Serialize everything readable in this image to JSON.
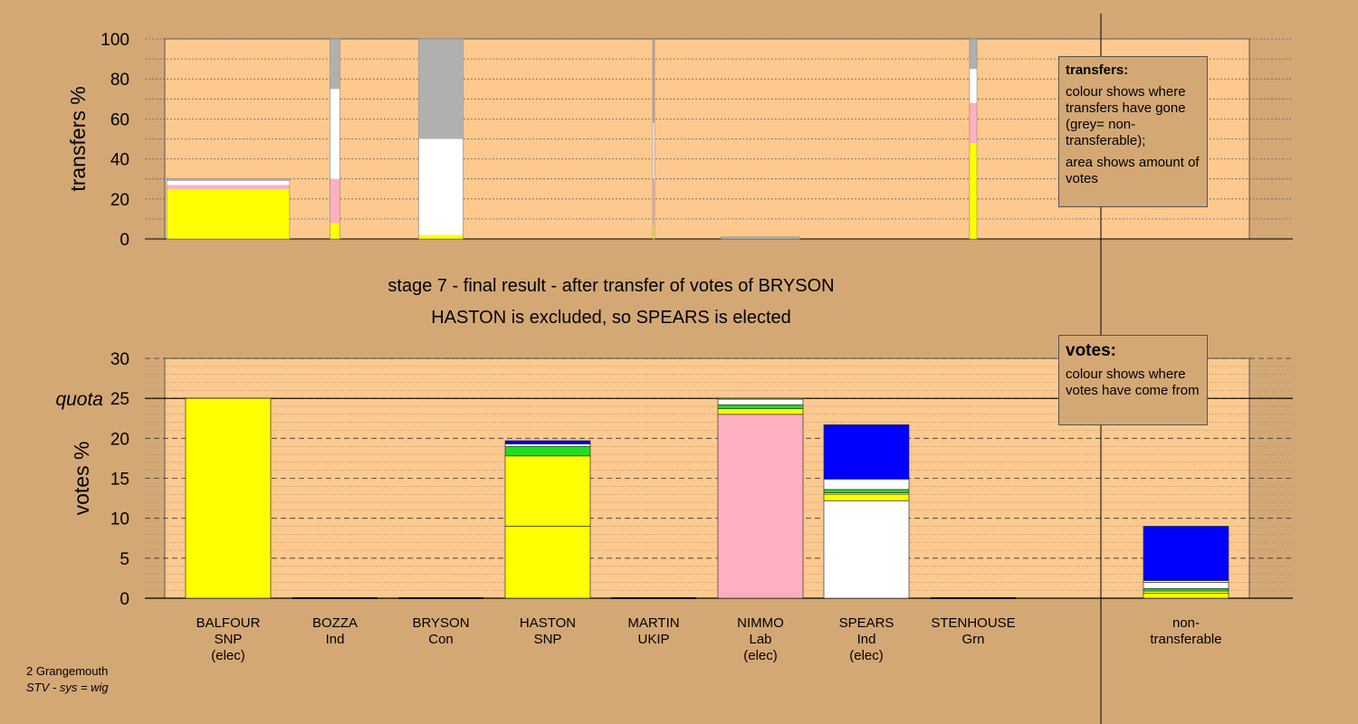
{
  "caption": {
    "line1": "stage 7 - final result - after transfer of votes of BRYSON",
    "line2": "HASTON is excluded, so SPEARS is elected"
  },
  "footer": {
    "ward": "2 Grangemouth",
    "system": "STV - sys = wig"
  },
  "legend_transfers": {
    "title": "transfers:",
    "line1": "colour shows where transfers have gone (grey= non-transferable);",
    "line2": "area shows amount of votes"
  },
  "legend_votes": {
    "title": "votes:",
    "line1": "colour shows where votes have come from"
  },
  "colors": {
    "background": "#d4a875",
    "plot": "#fec98e",
    "SNP": "#ffff00",
    "Ind": "#ffffff",
    "Con": "#0000ff",
    "Lab": "#ffb0c0",
    "Grn": "#22dd22",
    "UKIP": "#7700aa",
    "nontransferable": "#b0b0b0"
  },
  "chart_data": [
    {
      "type": "bar",
      "id": "transfers",
      "ylabel": "transfers %",
      "ylim": [
        0,
        100
      ],
      "yticks": [
        0,
        20,
        40,
        60,
        80,
        100
      ],
      "grid": true,
      "bars": [
        {
          "candidate": "BALFOUR",
          "width_share": 0.25,
          "segments": [
            {
              "color": "SNP",
              "value": 25
            },
            {
              "color": "Lab",
              "value": 2
            },
            {
              "color": "Ind",
              "value": 2
            },
            {
              "color": "nontransferable",
              "value": 1
            }
          ]
        },
        {
          "candidate": "BOZZA",
          "width_share": 0.02,
          "segments": [
            {
              "color": "SNP",
              "value": 8
            },
            {
              "color": "Lab",
              "value": 22
            },
            {
              "color": "Ind",
              "value": 45
            },
            {
              "color": "nontransferable",
              "value": 25
            }
          ]
        },
        {
          "candidate": "BRYSON",
          "width_share": 0.09,
          "segments": [
            {
              "color": "SNP",
              "value": 2
            },
            {
              "color": "Ind",
              "value": 48
            },
            {
              "color": "nontransferable",
              "value": 50
            }
          ]
        },
        {
          "candidate": "MARTIN",
          "width_share": 0.003,
          "segments": [
            {
              "color": "SNP",
              "value": 7
            },
            {
              "color": "Lab",
              "value": 23
            },
            {
              "color": "Ind",
              "value": 28
            },
            {
              "color": "nontransferable",
              "value": 42
            }
          ]
        },
        {
          "candidate": "NIMMO",
          "width_share": 0.16,
          "segments": [
            {
              "color": "nontransferable",
              "value": 1
            }
          ]
        },
        {
          "candidate": "STENHOUSE",
          "width_share": 0.015,
          "segments": [
            {
              "color": "SNP",
              "value": 48
            },
            {
              "color": "Lab",
              "value": 20
            },
            {
              "color": "Ind",
              "value": 17
            },
            {
              "color": "nontransferable",
              "value": 15
            }
          ]
        }
      ]
    },
    {
      "type": "bar",
      "id": "votes",
      "ylabel": "votes %",
      "ylim": [
        0,
        30
      ],
      "yticks": [
        0,
        5,
        10,
        15,
        20,
        25,
        30
      ],
      "quota": 25,
      "quota_label": "quota",
      "grid": true,
      "bars": [
        {
          "candidate": "BALFOUR",
          "party": "SNP",
          "status": "(elec)",
          "segments": [
            {
              "color": "SNP",
              "value": 25
            }
          ]
        },
        {
          "candidate": "BOZZA",
          "party": "Ind",
          "status": "",
          "segments": []
        },
        {
          "candidate": "BRYSON",
          "party": "Con",
          "status": "",
          "segments": []
        },
        {
          "candidate": "HASTON",
          "party": "SNP",
          "status": "",
          "segments": [
            {
              "color": "SNP",
              "value": 9.0
            },
            {
              "color": "SNP",
              "value": 8.8
            },
            {
              "color": "Grn",
              "value": 1.2
            },
            {
              "color": "Ind",
              "value": 0.3
            },
            {
              "color": "Con",
              "value": 0.4
            }
          ]
        },
        {
          "candidate": "MARTIN",
          "party": "UKIP",
          "status": "",
          "segments": []
        },
        {
          "candidate": "NIMMO",
          "party": "Lab",
          "status": "(elec)",
          "segments": [
            {
              "color": "Lab",
              "value": 23.0
            },
            {
              "color": "SNP",
              "value": 0.7
            },
            {
              "color": "Grn",
              "value": 0.5
            },
            {
              "color": "Ind",
              "value": 0.7
            },
            {
              "color": "SNP",
              "value": 0.1
            }
          ]
        },
        {
          "candidate": "SPEARS",
          "party": "Ind",
          "status": "(elec)",
          "segments": [
            {
              "color": "Ind",
              "value": 12.2
            },
            {
              "color": "SNP",
              "value": 0.8
            },
            {
              "color": "SNP",
              "value": 0.2
            },
            {
              "color": "Grn",
              "value": 0.4
            },
            {
              "color": "Ind",
              "value": 1.3
            },
            {
              "color": "Con",
              "value": 6.8
            }
          ]
        },
        {
          "candidate": "STENHOUSE",
          "party": "Grn",
          "status": "",
          "segments": []
        },
        {
          "candidate": "non-\ntransferable",
          "party": "",
          "status": "",
          "segments": [
            {
              "color": "SNP",
              "value": 0.6
            },
            {
              "color": "SNP",
              "value": 0.3
            },
            {
              "color": "Grn",
              "value": 0.3
            },
            {
              "color": "Ind",
              "value": 0.8
            },
            {
              "color": "Ind",
              "value": 0.2
            },
            {
              "color": "Con",
              "value": 6.8
            }
          ]
        }
      ]
    }
  ]
}
